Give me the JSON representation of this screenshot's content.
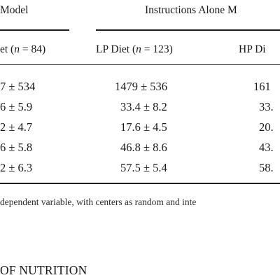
{
  "table": {
    "group_headers": [
      "Model",
      "Instructions Alone M"
    ],
    "subheaders": [
      {
        "prefix": "et (",
        "var": "n",
        "suffix": " = 84)"
      },
      {
        "prefix": "LP Diet (",
        "var": "n",
        "suffix": " = 123)"
      },
      {
        "prefix": "HP Di",
        "var": "",
        "suffix": ""
      }
    ],
    "rows": [
      [
        "7 ± 534",
        "1479 ± 536",
        "161"
      ],
      [
        "6 ± 5.9",
        "33.4 ± 8.2",
        "33."
      ],
      [
        "2 ± 4.7",
        "17.6 ± 4.5",
        "20."
      ],
      [
        "6 ± 5.8",
        "46.8 ± 8.6",
        "43."
      ],
      [
        "2 ± 6.3",
        "57.5 ± 5.4",
        "58."
      ]
    ],
    "footnote": "dependent variable, with centers as random and inte"
  },
  "section_heading": "OF NUTRITION"
}
